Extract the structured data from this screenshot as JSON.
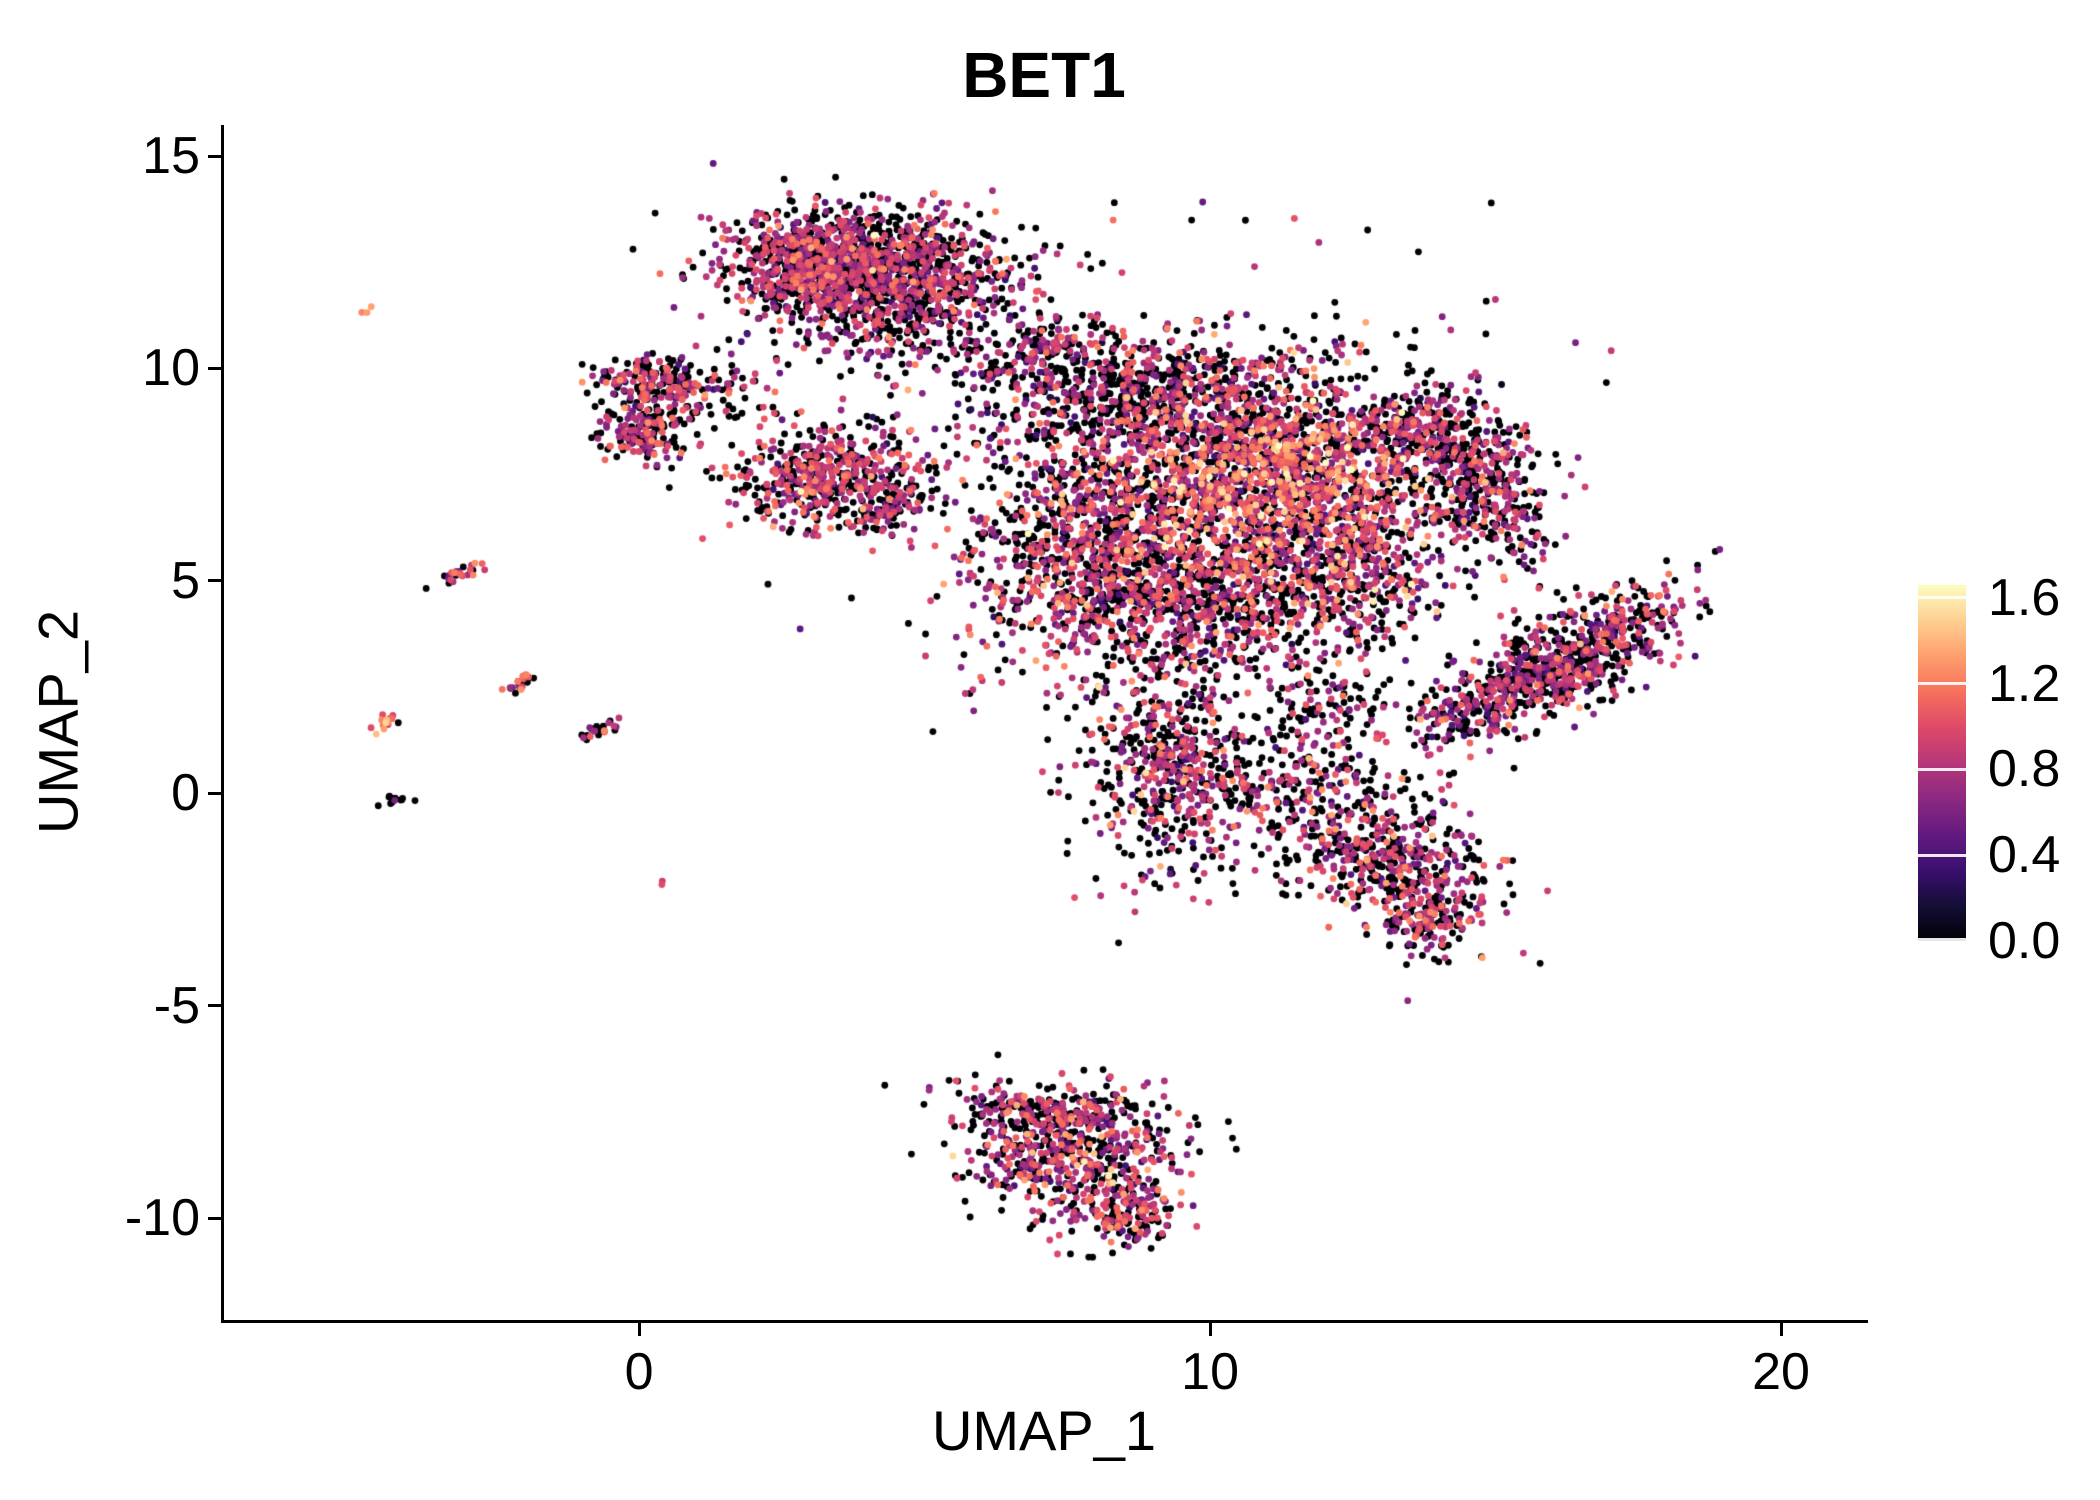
{
  "chart_data": {
    "type": "scatter",
    "title": "BET1",
    "xlabel": "UMAP_1",
    "ylabel": "UMAP_2",
    "xlim": [
      -7.27,
      21.47
    ],
    "ylim": [
      -12.4,
      15.73
    ],
    "x_ticks": [
      0,
      10,
      20
    ],
    "y_ticks": [
      15,
      10,
      5,
      0,
      -5,
      -10
    ],
    "grid": false,
    "point_radius_px": 3.4,
    "seed": 1337,
    "legend": {
      "position": "right",
      "tick_labels": [
        "1.6",
        "1.2",
        "0.8",
        "0.4",
        "0.0"
      ],
      "tick_values": [
        1.6,
        1.2,
        0.8,
        0.4,
        0.0
      ],
      "min": 0,
      "max": 1.66
    },
    "colormap": {
      "name": "magma",
      "stops": [
        [
          0.0,
          [
            0,
            0,
            4
          ]
        ],
        [
          0.1,
          [
            20,
            14,
            54
          ]
        ],
        [
          0.2,
          [
            59,
            15,
            112
          ]
        ],
        [
          0.3,
          [
            100,
            26,
            128
          ]
        ],
        [
          0.4,
          [
            140,
            41,
            129
          ]
        ],
        [
          0.5,
          [
            183,
            55,
            121
          ]
        ],
        [
          0.6,
          [
            222,
            73,
            104
          ]
        ],
        [
          0.7,
          [
            247,
            112,
            92
          ]
        ],
        [
          0.8,
          [
            254,
            159,
            109
          ]
        ],
        [
          0.9,
          [
            254,
            207,
            146
          ]
        ],
        [
          1.0,
          [
            252,
            253,
            191
          ]
        ]
      ]
    },
    "clusters": [
      {
        "name": "top-main",
        "cx": 4.1,
        "cy": 12.3,
        "sx": 1.25,
        "sy": 0.72,
        "rot": -8,
        "n": 1350,
        "p0": 0.45,
        "mu": 0.82,
        "sd": 0.22
      },
      {
        "name": "top-main-left",
        "cx": 2.9,
        "cy": 12.5,
        "sx": 0.55,
        "sy": 0.5,
        "rot": 0,
        "n": 250,
        "p0": 0.4,
        "mu": 0.85,
        "sd": 0.22
      },
      {
        "name": "top-under-sparse",
        "cx": 4.2,
        "cy": 10.9,
        "sx": 1.1,
        "sy": 0.5,
        "rot": 0,
        "n": 130,
        "p0": 0.55,
        "mu": 0.75,
        "sd": 0.2
      },
      {
        "name": "top-right-mini",
        "cx": 7.15,
        "cy": 10.6,
        "sx": 0.4,
        "sy": 0.3,
        "rot": 0,
        "n": 70,
        "p0": 0.5,
        "mu": 0.8,
        "sd": 0.2
      },
      {
        "name": "bridge-top-main",
        "cx": 6.3,
        "cy": 10.1,
        "sx": 0.6,
        "sy": 0.4,
        "rot": 0,
        "n": 45,
        "p0": 0.55,
        "mu": 0.75,
        "sd": 0.2
      },
      {
        "name": "left-blob-top",
        "cx": 0.35,
        "cy": 9.55,
        "sx": 0.6,
        "sy": 0.38,
        "rot": 0,
        "n": 230,
        "p0": 0.45,
        "mu": 0.8,
        "sd": 0.22
      },
      {
        "name": "left-blob-bottom",
        "cx": 0.15,
        "cy": 8.45,
        "sx": 0.45,
        "sy": 0.35,
        "rot": 0,
        "n": 160,
        "p0": 0.45,
        "mu": 0.8,
        "sd": 0.22
      },
      {
        "name": "left-blob-sparse",
        "cx": 1.5,
        "cy": 9.7,
        "sx": 0.55,
        "sy": 0.45,
        "rot": 0,
        "n": 30,
        "p0": 0.5,
        "mu": 0.75,
        "sd": 0.2
      },
      {
        "name": "mid-left",
        "cx": 3.3,
        "cy": 7.5,
        "sx": 0.78,
        "sy": 0.58,
        "rot": 15,
        "n": 520,
        "p0": 0.4,
        "mu": 0.85,
        "sd": 0.22
      },
      {
        "name": "mid-left-tail",
        "cx": 4.4,
        "cy": 6.7,
        "sx": 0.4,
        "sy": 0.3,
        "rot": 20,
        "n": 90,
        "p0": 0.45,
        "mu": 0.8,
        "sd": 0.2
      },
      {
        "name": "main-top",
        "cx": 8.7,
        "cy": 9.4,
        "sx": 1.5,
        "sy": 0.75,
        "rot": 0,
        "n": 750,
        "p0": 0.5,
        "mu": 0.8,
        "sd": 0.25
      },
      {
        "name": "main-core",
        "cx": 11.0,
        "cy": 7.5,
        "sx": 1.35,
        "sy": 1.15,
        "rot": 0,
        "n": 1600,
        "p0": 0.32,
        "mu": 0.95,
        "sd": 0.3
      },
      {
        "name": "main-left",
        "cx": 7.9,
        "cy": 5.9,
        "sx": 1.05,
        "sy": 1.35,
        "rot": 0,
        "n": 850,
        "p0": 0.42,
        "mu": 0.85,
        "sd": 0.25
      },
      {
        "name": "main-bottom",
        "cx": 9.9,
        "cy": 4.5,
        "sx": 1.35,
        "sy": 0.9,
        "rot": 0,
        "n": 700,
        "p0": 0.45,
        "mu": 0.85,
        "sd": 0.25
      },
      {
        "name": "main-right",
        "cx": 12.4,
        "cy": 5.4,
        "sx": 0.8,
        "sy": 1.05,
        "rot": 0,
        "n": 430,
        "p0": 0.45,
        "mu": 0.85,
        "sd": 0.25
      },
      {
        "name": "main-halo",
        "cx": 9.9,
        "cy": 6.9,
        "sx": 2.7,
        "sy": 2.5,
        "rot": 0,
        "n": 520,
        "p0": 0.55,
        "mu": 0.75,
        "sd": 0.25
      },
      {
        "name": "right-crescent-top",
        "cx": 13.9,
        "cy": 8.5,
        "sx": 0.85,
        "sy": 0.5,
        "rot": -20,
        "n": 330,
        "p0": 0.5,
        "mu": 0.8,
        "sd": 0.22
      },
      {
        "name": "right-crescent-bottom",
        "cx": 14.8,
        "cy": 7.0,
        "sx": 0.55,
        "sy": 0.85,
        "rot": 25,
        "n": 320,
        "p0": 0.5,
        "mu": 0.8,
        "sd": 0.22
      },
      {
        "name": "far-right-band",
        "cx": 16.2,
        "cy": 3.1,
        "sx": 1.25,
        "sy": 0.5,
        "rot": 38,
        "n": 780,
        "p0": 0.5,
        "mu": 0.8,
        "sd": 0.25
      },
      {
        "name": "band-tip-sparse",
        "cx": 14.4,
        "cy": 1.9,
        "sx": 0.5,
        "sy": 0.35,
        "rot": 38,
        "n": 90,
        "p0": 0.55,
        "mu": 0.75,
        "sd": 0.2
      },
      {
        "name": "lower-mid",
        "cx": 9.3,
        "cy": 0.5,
        "sx": 0.75,
        "sy": 1.15,
        "rot": 0,
        "n": 520,
        "p0": 0.45,
        "mu": 0.85,
        "sd": 0.25
      },
      {
        "name": "connector-mid",
        "cx": 11.0,
        "cy": 0.2,
        "sx": 1.0,
        "sy": 0.55,
        "rot": -15,
        "n": 160,
        "p0": 0.5,
        "mu": 0.8,
        "sd": 0.22
      },
      {
        "name": "connector-vertical",
        "cx": 12.1,
        "cy": 2.0,
        "sx": 0.6,
        "sy": 1.0,
        "rot": 0,
        "n": 150,
        "p0": 0.55,
        "mu": 0.8,
        "sd": 0.22
      },
      {
        "name": "lower-right",
        "cx": 13.1,
        "cy": -1.4,
        "sx": 0.95,
        "sy": 0.75,
        "rot": -25,
        "n": 480,
        "p0": 0.48,
        "mu": 0.82,
        "sd": 0.25
      },
      {
        "name": "lower-right-tail",
        "cx": 13.9,
        "cy": -2.9,
        "sx": 0.45,
        "sy": 0.6,
        "rot": -10,
        "n": 150,
        "p0": 0.45,
        "mu": 0.85,
        "sd": 0.22
      },
      {
        "name": "bottom-triangle",
        "cx": 7.6,
        "cy": -8.5,
        "sx": 1.0,
        "sy": 0.8,
        "rot": -15,
        "n": 620,
        "p0": 0.45,
        "mu": 0.85,
        "sd": 0.25
      },
      {
        "name": "bottom-triangle-edge",
        "cx": 7.1,
        "cy": -7.5,
        "sx": 0.85,
        "sy": 0.22,
        "rot": -5,
        "n": 150,
        "p0": 0.5,
        "mu": 0.8,
        "sd": 0.22
      },
      {
        "name": "bottom-triangle-tip",
        "cx": 8.6,
        "cy": -9.9,
        "sx": 0.4,
        "sy": 0.4,
        "rot": 0,
        "n": 130,
        "p0": 0.45,
        "mu": 0.85,
        "sd": 0.22
      },
      {
        "name": "satellite-orange-high",
        "cx": -4.75,
        "cy": 11.4,
        "sx": 0.07,
        "sy": 0.05,
        "rot": 30,
        "n": 3,
        "p0": 0.0,
        "mu": 1.25,
        "sd": 0.15
      },
      {
        "name": "satellite-streak-5",
        "cx": -3.1,
        "cy": 5.15,
        "sx": 0.2,
        "sy": 0.08,
        "rot": 35,
        "n": 26,
        "p0": 0.3,
        "mu": 1.0,
        "sd": 0.25
      },
      {
        "name": "satellite-streak-2-5",
        "cx": -2.1,
        "cy": 2.55,
        "sx": 0.16,
        "sy": 0.07,
        "rot": 35,
        "n": 22,
        "p0": 0.4,
        "mu": 0.9,
        "sd": 0.25
      },
      {
        "name": "satellite-streak-1-5",
        "cx": -0.62,
        "cy": 1.5,
        "sx": 0.2,
        "sy": 0.08,
        "rot": 30,
        "n": 26,
        "p0": 0.55,
        "mu": 0.8,
        "sd": 0.2
      },
      {
        "name": "satellite-orange-2",
        "cx": -4.4,
        "cy": 1.7,
        "sx": 0.15,
        "sy": 0.07,
        "rot": 30,
        "n": 16,
        "p0": 0.15,
        "mu": 1.15,
        "sd": 0.2
      },
      {
        "name": "satellite-black",
        "cx": -4.25,
        "cy": -0.1,
        "sx": 0.13,
        "sy": 0.07,
        "rot": 20,
        "n": 14,
        "p0": 0.85,
        "mu": 0.5,
        "sd": 0.2
      },
      {
        "name": "satellite-single",
        "cx": 0.35,
        "cy": -2.1,
        "sx": 0.05,
        "sy": 0.04,
        "rot": 0,
        "n": 2,
        "p0": 0.3,
        "mu": 0.85,
        "sd": 0.1
      }
    ]
  },
  "colors": {
    "background": "#ffffff",
    "axis": "#000000",
    "text": "#000000",
    "legend_tick": "#ffffff"
  }
}
